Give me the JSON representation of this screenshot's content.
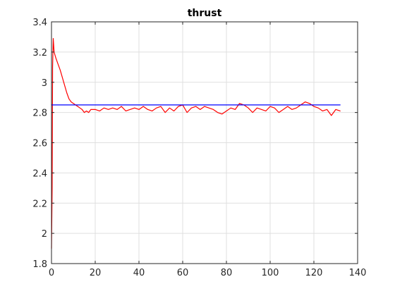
{
  "chart_data": {
    "type": "line",
    "title": "thrust",
    "xlabel": "",
    "ylabel": "",
    "xlim": [
      0,
      140
    ],
    "ylim": [
      1.8,
      3.4
    ],
    "x_ticks": [
      0,
      20,
      40,
      60,
      80,
      100,
      120,
      140
    ],
    "x_tick_labels": [
      "0",
      "20",
      "40",
      "60",
      "80",
      "100",
      "120",
      "140"
    ],
    "y_ticks": [
      1.8,
      2.0,
      2.2,
      2.4,
      2.6,
      2.8,
      3.0,
      3.2,
      3.4
    ],
    "y_tick_labels": [
      "1.8",
      "2",
      "2.2",
      "2.4",
      "2.6",
      "2.8",
      "3",
      "3.2",
      "3.4"
    ],
    "grid": true,
    "legend": "none",
    "series": [
      {
        "color": "#ff0000",
        "x": [
          0,
          0.3,
          0.5,
          0.8,
          1.2,
          2,
          3,
          4,
          5,
          6,
          7,
          8,
          9,
          10,
          11,
          12,
          13,
          14,
          15,
          16,
          17,
          18,
          20,
          22,
          24,
          26,
          28,
          30,
          32,
          34,
          36,
          38,
          40,
          42,
          44,
          46,
          48,
          50,
          52,
          54,
          56,
          58,
          60,
          62,
          64,
          66,
          68,
          70,
          72,
          74,
          76,
          78,
          80,
          82,
          84,
          86,
          88,
          90,
          92,
          94,
          96,
          98,
          100,
          102,
          104,
          106,
          108,
          110,
          112,
          114,
          116,
          118,
          120,
          122,
          124,
          126,
          128,
          130,
          132
        ],
        "y": [
          1.9,
          2.3,
          3.1,
          3.29,
          3.2,
          3.16,
          3.12,
          3.08,
          3.03,
          2.98,
          2.93,
          2.89,
          2.87,
          2.86,
          2.85,
          2.84,
          2.83,
          2.82,
          2.8,
          2.81,
          2.8,
          2.82,
          2.82,
          2.81,
          2.83,
          2.82,
          2.83,
          2.82,
          2.84,
          2.81,
          2.82,
          2.83,
          2.82,
          2.84,
          2.82,
          2.81,
          2.83,
          2.84,
          2.8,
          2.83,
          2.81,
          2.84,
          2.85,
          2.8,
          2.83,
          2.84,
          2.82,
          2.84,
          2.83,
          2.82,
          2.8,
          2.79,
          2.81,
          2.83,
          2.82,
          2.86,
          2.85,
          2.83,
          2.8,
          2.83,
          2.82,
          2.81,
          2.84,
          2.83,
          2.8,
          2.82,
          2.84,
          2.82,
          2.83,
          2.85,
          2.87,
          2.86,
          2.84,
          2.83,
          2.81,
          2.82,
          2.78,
          2.82,
          2.81
        ]
      },
      {
        "color": "#0000ff",
        "x": [
          0,
          132
        ],
        "y": [
          2.85,
          2.85
        ]
      }
    ]
  }
}
